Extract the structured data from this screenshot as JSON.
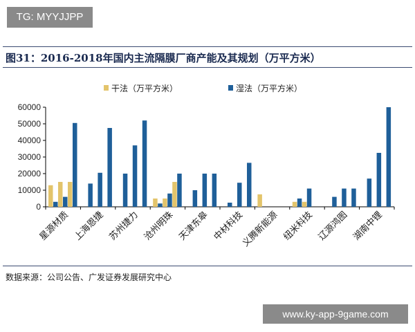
{
  "watermarks": {
    "top_left": "TG: MYYJJPP",
    "bottom_right": "www.ky-app-9game.com"
  },
  "title": "图31：2016-2018年国内主流隔膜厂商产能及其规划（万平方米）",
  "source": "数据来源：公司公告、广发证券发展研究中心",
  "chart_data": {
    "type": "bar",
    "title": "",
    "ylim": [
      0,
      60000
    ],
    "yticks": [
      "0",
      "10000",
      "20000",
      "30000",
      "40000",
      "50000",
      "60000"
    ],
    "legend_position": "top",
    "categories": [
      "星源材质",
      "上海恩捷",
      "苏州捷力",
      "沧州明珠",
      "天津东皋",
      "中材科技",
      "义腾新能源",
      "纽米科技",
      "辽源鸿图",
      "湖南中锂"
    ],
    "years": [
      "2016",
      "2017",
      "2018"
    ],
    "series": [
      {
        "name": "干法（万平方米）",
        "color": "#e3c46b",
        "values": [
          [
            13000,
            15000,
            15000
          ],
          [
            0,
            0,
            0
          ],
          [
            0,
            0,
            0
          ],
          [
            5000,
            5000,
            15000
          ],
          [
            0,
            0,
            0
          ],
          [
            0,
            0,
            0
          ],
          [
            7500,
            0,
            0
          ],
          [
            3000,
            3000,
            0
          ],
          [
            0,
            0,
            0
          ],
          [
            0,
            0,
            0
          ]
        ]
      },
      {
        "name": "湿法（万平方米）",
        "color": "#1f5f99",
        "values": [
          [
            3000,
            6000,
            50500
          ],
          [
            14000,
            20500,
            47500
          ],
          [
            20000,
            37000,
            52000
          ],
          [
            2000,
            8000,
            20000
          ],
          [
            10000,
            20000,
            20000
          ],
          [
            2500,
            14500,
            26500
          ],
          [
            0,
            0,
            0
          ],
          [
            5000,
            11000,
            0
          ],
          [
            6000,
            11000,
            11000
          ],
          [
            17000,
            32500,
            60000
          ]
        ]
      }
    ]
  }
}
